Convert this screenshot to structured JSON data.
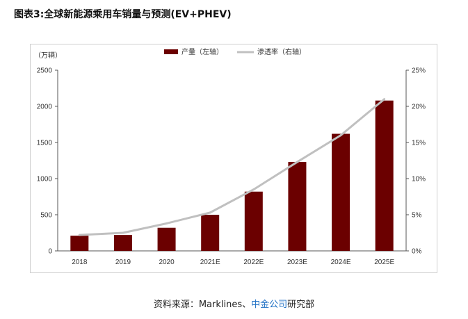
{
  "figure": {
    "title": "图表3:全球新能源乘用车销量与预测(EV+PHEV)",
    "source_prefix": "资料来源：Marklines、",
    "source_link": "中金公司",
    "source_suffix": "研究部"
  },
  "chart_data": {
    "type": "bar",
    "categories": [
      "2018",
      "2019",
      "2020",
      "2021E",
      "2022E",
      "2023E",
      "2024E",
      "2025E"
    ],
    "series": [
      {
        "name": "产量（左轴）",
        "type": "bar",
        "axis": "left",
        "color": "#6b0000",
        "values": [
          210,
          220,
          320,
          500,
          820,
          1230,
          1620,
          2080
        ]
      },
      {
        "name": "渗透率（右轴）",
        "type": "line",
        "axis": "right",
        "color": "#c0c0c0",
        "values": [
          2.2,
          2.5,
          3.8,
          5.3,
          8.5,
          12.3,
          16.0,
          21.0
        ]
      }
    ],
    "y_left": {
      "unit": "（万辆）",
      "ylim": [
        0,
        2500
      ],
      "ticks": [
        "0",
        "500",
        "1000",
        "1500",
        "2000",
        "2500"
      ]
    },
    "y_right": {
      "ylim": [
        0,
        25
      ],
      "ticks": [
        "0%",
        "5%",
        "10%",
        "15%",
        "20%",
        "25%"
      ]
    },
    "grid": false,
    "legend_position": "top-center"
  }
}
